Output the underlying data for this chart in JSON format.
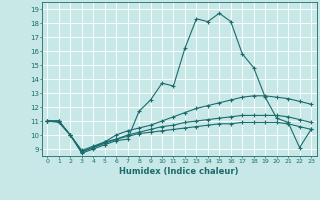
{
  "xlabel": "Humidex (Indice chaleur)",
  "xlim": [
    -0.5,
    23.5
  ],
  "ylim": [
    8.5,
    19.5
  ],
  "yticks": [
    9,
    10,
    11,
    12,
    13,
    14,
    15,
    16,
    17,
    18,
    19
  ],
  "xticks": [
    0,
    1,
    2,
    3,
    4,
    5,
    6,
    7,
    8,
    9,
    10,
    11,
    12,
    13,
    14,
    15,
    16,
    17,
    18,
    19,
    20,
    21,
    22,
    23
  ],
  "bg_color": "#c8e8e8",
  "line_color": "#1a6b6b",
  "grid_color": "#b0d8d8",
  "lines": [
    {
      "x": [
        0,
        1,
        2,
        3,
        4,
        5,
        6,
        7,
        8,
        9,
        10,
        11,
        12,
        13,
        14,
        15,
        16,
        17,
        18,
        19,
        20,
        21,
        22,
        23
      ],
      "y": [
        11,
        11,
        10,
        8.7,
        9.0,
        9.3,
        9.6,
        9.7,
        11.7,
        12.5,
        13.7,
        13.5,
        16.2,
        18.3,
        18.1,
        18.7,
        18.1,
        15.8,
        14.8,
        12.7,
        11.2,
        10.9,
        9.1,
        10.4
      ]
    },
    {
      "x": [
        0,
        1,
        2,
        3,
        4,
        5,
        6,
        7,
        8,
        9,
        10,
        11,
        12,
        13,
        14,
        15,
        16,
        17,
        18,
        19,
        20,
        21,
        22,
        23
      ],
      "y": [
        11,
        11,
        10,
        8.8,
        9.1,
        9.5,
        10.0,
        10.3,
        10.5,
        10.7,
        11.0,
        11.3,
        11.6,
        11.9,
        12.1,
        12.3,
        12.5,
        12.7,
        12.8,
        12.8,
        12.7,
        12.6,
        12.4,
        12.2
      ]
    },
    {
      "x": [
        0,
        1,
        2,
        3,
        4,
        5,
        6,
        7,
        8,
        9,
        10,
        11,
        12,
        13,
        14,
        15,
        16,
        17,
        18,
        19,
        20,
        21,
        22,
        23
      ],
      "y": [
        11,
        11,
        10,
        8.8,
        9.1,
        9.4,
        9.7,
        10.0,
        10.2,
        10.4,
        10.6,
        10.7,
        10.9,
        11.0,
        11.1,
        11.2,
        11.3,
        11.4,
        11.4,
        11.4,
        11.4,
        11.3,
        11.1,
        10.9
      ]
    },
    {
      "x": [
        0,
        1,
        2,
        3,
        4,
        5,
        6,
        7,
        8,
        9,
        10,
        11,
        12,
        13,
        14,
        15,
        16,
        17,
        18,
        19,
        20,
        21,
        22,
        23
      ],
      "y": [
        11,
        10.9,
        10.0,
        8.9,
        9.2,
        9.5,
        9.7,
        9.9,
        10.1,
        10.2,
        10.3,
        10.4,
        10.5,
        10.6,
        10.7,
        10.8,
        10.8,
        10.9,
        10.9,
        10.9,
        10.9,
        10.8,
        10.6,
        10.4
      ]
    }
  ]
}
